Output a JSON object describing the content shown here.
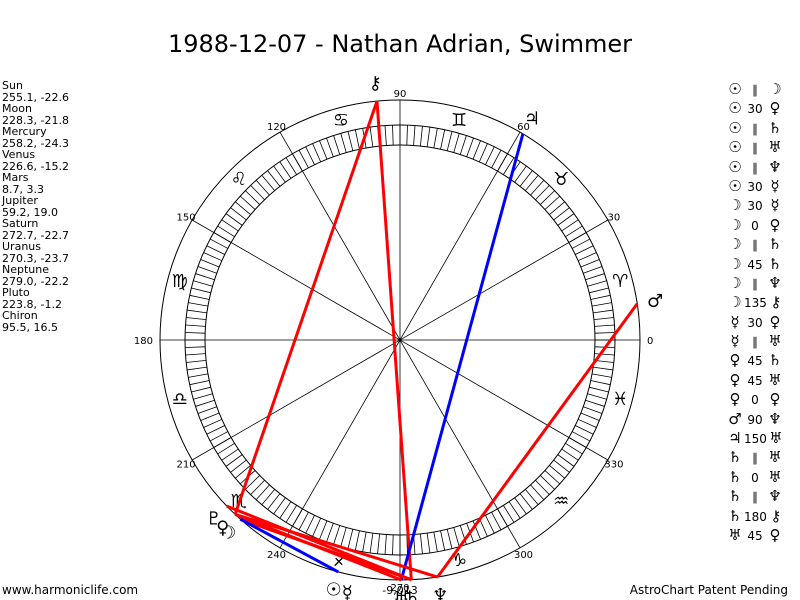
{
  "title": "1988-12-07 - Nathan Adrian, Swimmer",
  "positions": [
    {
      "name": "Sun",
      "value": "255.1, -22.6"
    },
    {
      "name": "Moon",
      "value": "228.3, -21.8"
    },
    {
      "name": "Mercury",
      "value": "258.2, -24.3"
    },
    {
      "name": "Venus",
      "value": "226.6, -15.2"
    },
    {
      "name": "Mars",
      "value": "8.7, 3.3"
    },
    {
      "name": "Jupiter",
      "value": "59.2, 19.0"
    },
    {
      "name": "Saturn",
      "value": "272.7, -22.7"
    },
    {
      "name": "Uranus",
      "value": "270.3, -23.7"
    },
    {
      "name": "Neptune",
      "value": "279.0, -22.2"
    },
    {
      "name": "Pluto",
      "value": "223.8, -1.2"
    },
    {
      "name": "Chiron",
      "value": "95.5, 16.5"
    }
  ],
  "aspects": [
    {
      "p1": "☉",
      "asp": "∥",
      "p2": "☽"
    },
    {
      "p1": "☉",
      "asp": "30",
      "p2": "♀"
    },
    {
      "p1": "☉",
      "asp": "∥",
      "p2": "♄"
    },
    {
      "p1": "☉",
      "asp": "∥",
      "p2": "♅"
    },
    {
      "p1": "☉",
      "asp": "∥",
      "p2": "♆"
    },
    {
      "p1": "☉",
      "asp": "30",
      "p2": "☿"
    },
    {
      "p1": "☽",
      "asp": "30",
      "p2": "☿"
    },
    {
      "p1": "☽",
      "asp": "0",
      "p2": "♀"
    },
    {
      "p1": "☽",
      "asp": "∥",
      "p2": "♄"
    },
    {
      "p1": "☽",
      "asp": "45",
      "p2": "♄"
    },
    {
      "p1": "☽",
      "asp": "∥",
      "p2": "♆"
    },
    {
      "p1": "☽",
      "asp": "135",
      "p2": "⚷"
    },
    {
      "p1": "☿",
      "asp": "30",
      "p2": "♀"
    },
    {
      "p1": "☿",
      "asp": "∥",
      "p2": "♅"
    },
    {
      "p1": "♀",
      "asp": "45",
      "p2": "♄"
    },
    {
      "p1": "♀",
      "asp": "45",
      "p2": "♅"
    },
    {
      "p1": "♀",
      "asp": "0",
      "p2": "♀"
    },
    {
      "p1": "♂",
      "asp": "90",
      "p2": "♆"
    },
    {
      "p1": "♃",
      "asp": "150",
      "p2": "♅"
    },
    {
      "p1": "♄",
      "asp": "∥",
      "p2": "♅"
    },
    {
      "p1": "♄",
      "asp": "0",
      "p2": "♅"
    },
    {
      "p1": "♄",
      "asp": "∥",
      "p2": "♆"
    },
    {
      "p1": "♄",
      "asp": "180",
      "p2": "⚷"
    },
    {
      "p1": "♅",
      "asp": "45",
      "p2": "♀"
    }
  ],
  "wheel": {
    "degree_labels": [
      "0",
      "30",
      "60",
      "90",
      "120",
      "150",
      "180",
      "210",
      "240",
      "270",
      "300",
      "330"
    ],
    "signs": [
      {
        "name": "aries-icon",
        "glyph": "♈",
        "lon": 15
      },
      {
        "name": "taurus-icon",
        "glyph": "♉",
        "lon": 45
      },
      {
        "name": "gemini-icon",
        "glyph": "♊",
        "lon": 75
      },
      {
        "name": "cancer-icon",
        "glyph": "♋",
        "lon": 105
      },
      {
        "name": "leo-icon",
        "glyph": "♌",
        "lon": 135
      },
      {
        "name": "virgo-icon",
        "glyph": "♍",
        "lon": 165
      },
      {
        "name": "libra-icon",
        "glyph": "♎",
        "lon": 195
      },
      {
        "name": "scorpio-icon",
        "glyph": "♏",
        "lon": 225
      },
      {
        "name": "sagittarius-icon",
        "glyph": "♐",
        "lon": 255
      },
      {
        "name": "capricorn-icon",
        "glyph": "♑",
        "lon": 285
      },
      {
        "name": "aquarius-icon",
        "glyph": "♒",
        "lon": 315
      },
      {
        "name": "pisces-icon",
        "glyph": "♓",
        "lon": 345
      }
    ],
    "planets": [
      {
        "name": "sun-icon",
        "glyph": "☉",
        "lon": 255.1
      },
      {
        "name": "moon-icon",
        "glyph": "☽",
        "lon": 228.3
      },
      {
        "name": "mercury-icon",
        "glyph": "☿",
        "lon": 258.2
      },
      {
        "name": "venus-icon",
        "glyph": "♀",
        "lon": 226.6
      },
      {
        "name": "mars-icon",
        "glyph": "♂",
        "lon": 8.7
      },
      {
        "name": "jupiter-icon",
        "glyph": "♃",
        "lon": 59.2
      },
      {
        "name": "saturn-icon",
        "glyph": "♄",
        "lon": 272.7
      },
      {
        "name": "uranus-icon",
        "glyph": "♅",
        "lon": 270.3
      },
      {
        "name": "neptune-icon",
        "glyph": "♆",
        "lon": 279.0
      },
      {
        "name": "pluto-icon",
        "glyph": "♇",
        "lon": 223.8
      },
      {
        "name": "chiron-icon",
        "glyph": "⚷",
        "lon": 95.5
      }
    ],
    "aspect_lines": [
      {
        "from": 95.5,
        "to": 226.6,
        "color": "#ff0000"
      },
      {
        "from": 95.5,
        "to": 272.7,
        "color": "#ff0000"
      },
      {
        "from": 59.2,
        "to": 270.3,
        "color": "#0000ff"
      },
      {
        "from": 8.7,
        "to": 279.0,
        "color": "#ff0000"
      },
      {
        "from": 228.3,
        "to": 272.7,
        "color": "#ff0000"
      },
      {
        "from": 226.6,
        "to": 270.3,
        "color": "#ff0000"
      },
      {
        "from": 223.8,
        "to": 272.7,
        "color": "#ff0000"
      },
      {
        "from": 228.3,
        "to": 255.1,
        "color": "#0000ff"
      },
      {
        "from": 226.6,
        "to": 279.0,
        "color": "#ff0000"
      }
    ],
    "bottom_label": "-9,013"
  },
  "footer_left": "www.harmoniclife.com",
  "footer_right": "AstroChart Patent Pending"
}
